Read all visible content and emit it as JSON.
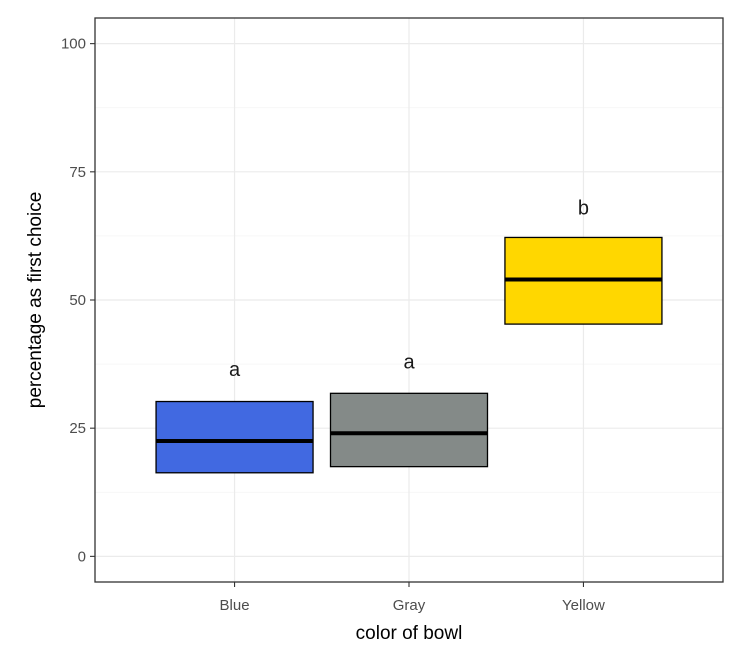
{
  "chart_data": {
    "type": "box",
    "xlabel": "color of bowl",
    "ylabel": "percentage as first choice",
    "ylim": [
      -5,
      105
    ],
    "yticks": [
      0,
      25,
      50,
      75,
      100
    ],
    "yticklabels": [
      "0",
      "25",
      "50",
      "75",
      "100"
    ],
    "grid": true,
    "categories": [
      "Blue",
      "Gray",
      "Yellow"
    ],
    "boxes": [
      {
        "category": "Blue",
        "q1": 16.3,
        "median": 22.5,
        "q3": 30.2,
        "fill": "#4169e1",
        "label": "a",
        "label_y": 36.5
      },
      {
        "category": "Gray",
        "q1": 17.5,
        "median": 24.0,
        "q3": 31.8,
        "fill": "#848a88",
        "label": "a",
        "label_y": 38.0
      },
      {
        "category": "Yellow",
        "q1": 45.3,
        "median": 54.0,
        "q3": 62.2,
        "fill": "#ffd700",
        "label": "b",
        "label_y": 68.0
      }
    ]
  }
}
